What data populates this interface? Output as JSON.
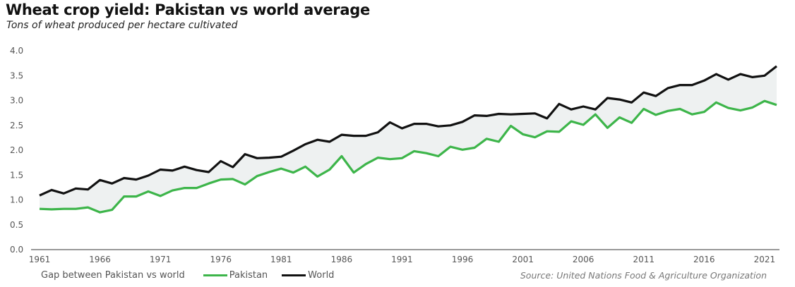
{
  "chart_data": {
    "type": "line",
    "title": "Wheat crop yield: Pakistan vs world average",
    "subtitle": "Tons of wheat produced per hectare cultivated",
    "source": "Source: United Nations Food & Agriculture Organization",
    "ylim": [
      0,
      4.0
    ],
    "yticks": [
      "0.0",
      "0.5",
      "1.0",
      "1.5",
      "2.0",
      "2.5",
      "3.0",
      "3.5",
      "4.0"
    ],
    "xticks": [
      "1961",
      "1966",
      "1971",
      "1976",
      "1981",
      "1986",
      "1991",
      "1996",
      "2001",
      "2006",
      "2011",
      "2016",
      "2021"
    ],
    "x": [
      1961,
      1962,
      1963,
      1964,
      1965,
      1966,
      1967,
      1968,
      1969,
      1970,
      1971,
      1972,
      1973,
      1974,
      1975,
      1976,
      1977,
      1978,
      1979,
      1980,
      1981,
      1982,
      1983,
      1984,
      1985,
      1986,
      1987,
      1988,
      1989,
      1990,
      1991,
      1992,
      1993,
      1994,
      1995,
      1996,
      1997,
      1998,
      1999,
      2000,
      2001,
      2002,
      2003,
      2004,
      2005,
      2006,
      2007,
      2008,
      2009,
      2010,
      2011,
      2012,
      2013,
      2014,
      2015,
      2016,
      2017,
      2018,
      2019,
      2020,
      2021,
      2022
    ],
    "legend": {
      "gap_label": "Gap between Pakistan vs world",
      "placement": "bottom-left"
    },
    "fill_color": "#eef1f1",
    "series": [
      {
        "name": "Pakistan",
        "color": "#3db54a",
        "values": [
          0.82,
          0.81,
          0.82,
          0.82,
          0.85,
          0.75,
          0.8,
          1.07,
          1.07,
          1.17,
          1.08,
          1.19,
          1.24,
          1.24,
          1.33,
          1.41,
          1.42,
          1.31,
          1.48,
          1.56,
          1.63,
          1.55,
          1.67,
          1.47,
          1.61,
          1.88,
          1.55,
          1.72,
          1.85,
          1.82,
          1.84,
          1.98,
          1.94,
          1.88,
          2.07,
          2.01,
          2.05,
          2.23,
          2.17,
          2.49,
          2.32,
          2.26,
          2.38,
          2.37,
          2.58,
          2.51,
          2.72,
          2.45,
          2.66,
          2.55,
          2.83,
          2.71,
          2.79,
          2.83,
          2.72,
          2.77,
          2.96,
          2.85,
          2.8,
          2.86,
          2.99,
          2.91
        ]
      },
      {
        "name": "World",
        "color": "#111111",
        "values": [
          1.09,
          1.2,
          1.13,
          1.23,
          1.21,
          1.4,
          1.33,
          1.44,
          1.41,
          1.49,
          1.61,
          1.59,
          1.67,
          1.6,
          1.56,
          1.78,
          1.66,
          1.92,
          1.84,
          1.85,
          1.87,
          1.99,
          2.12,
          2.21,
          2.17,
          2.31,
          2.29,
          2.29,
          2.36,
          2.56,
          2.44,
          2.53,
          2.53,
          2.48,
          2.5,
          2.57,
          2.7,
          2.69,
          2.73,
          2.72,
          2.73,
          2.74,
          2.64,
          2.93,
          2.82,
          2.88,
          2.82,
          3.05,
          3.02,
          2.96,
          3.16,
          3.09,
          3.25,
          3.31,
          3.31,
          3.4,
          3.53,
          3.42,
          3.53,
          3.47,
          3.5,
          3.69
        ]
      }
    ]
  }
}
